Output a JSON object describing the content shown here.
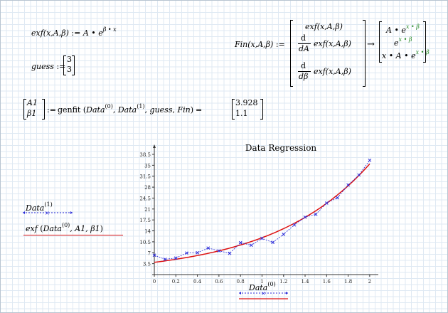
{
  "define_exf": {
    "lhs": "exf(x,A,β)",
    "assign": ":=",
    "rhs": "A • e",
    "exponent": "β • x"
  },
  "guess": {
    "name": "guess",
    "assign": ":=",
    "values": [
      "3",
      "3"
    ]
  },
  "fin": {
    "lhs": "Fin(x,A,β)",
    "assign": ":=",
    "row1": "exf(x,A,β)",
    "d": "d",
    "row2_den": "dA",
    "row2_fn": "exf(x,A,β)",
    "row3_den": "dβ",
    "row3_fn": "exf(x,A,β)",
    "arrow": "→",
    "res1": "A • e",
    "res1_exp": "x • β",
    "res2": "e",
    "res2_exp": "x • β",
    "res3": "x • A • e",
    "res3_exp": "x • β"
  },
  "genfit": {
    "lhs": [
      "A1",
      "β1"
    ],
    "assign": ":=",
    "func": "genfit",
    "args": {
      "a": "Data",
      "a_sup": "(0)",
      "b": "Data",
      "b_sup": "(1)",
      "c": "guess",
      "d": "Fin"
    },
    "eq": "=",
    "result": [
      "3.928",
      "1.1"
    ]
  },
  "legend": {
    "series1": "Data",
    "series1_sup": "(1)",
    "series2": "exf",
    "series2_args_a": "Data",
    "series2_args_sup": "(0)",
    "series2_args_rest": ", A1, β1"
  },
  "chart_data": {
    "type": "line",
    "title": "Data Regression",
    "xlabel": "Data",
    "xlabel_sup": "(0)",
    "xlim": [
      -0.02,
      2.08
    ],
    "ylim": [
      0,
      41
    ],
    "x_ticks": [
      "0",
      "0.2",
      "0.4",
      "0.6",
      "0.8",
      "1",
      "1.2",
      "1.4",
      "1.6",
      "1.8",
      "2"
    ],
    "y_ticks": [
      "3.5",
      "7",
      "10.5",
      "14",
      "17.5",
      "21",
      "24.5",
      "28",
      "31.5",
      "35",
      "38.5"
    ],
    "series": [
      {
        "name": "Data(1)",
        "x": [
          0,
          0.1,
          0.2,
          0.3,
          0.4,
          0.5,
          0.6,
          0.7,
          0.8,
          0.9,
          1.0,
          1.1,
          1.2,
          1.3,
          1.4,
          1.5,
          1.6,
          1.7,
          1.8,
          1.9,
          2.0
        ],
        "y": [
          6.2,
          4.9,
          5.3,
          6.9,
          7.0,
          8.5,
          7.6,
          6.8,
          10.2,
          9.4,
          11.6,
          10.3,
          12.9,
          15.9,
          18.4,
          19.3,
          22.9,
          24.6,
          28.7,
          31.9,
          36.6
        ],
        "color": "#2a2ad8"
      },
      {
        "name": "exf(Data(0), A1, β1)",
        "fit": {
          "A": 3.928,
          "beta": 1.1
        },
        "color": "#dd1111"
      }
    ]
  }
}
